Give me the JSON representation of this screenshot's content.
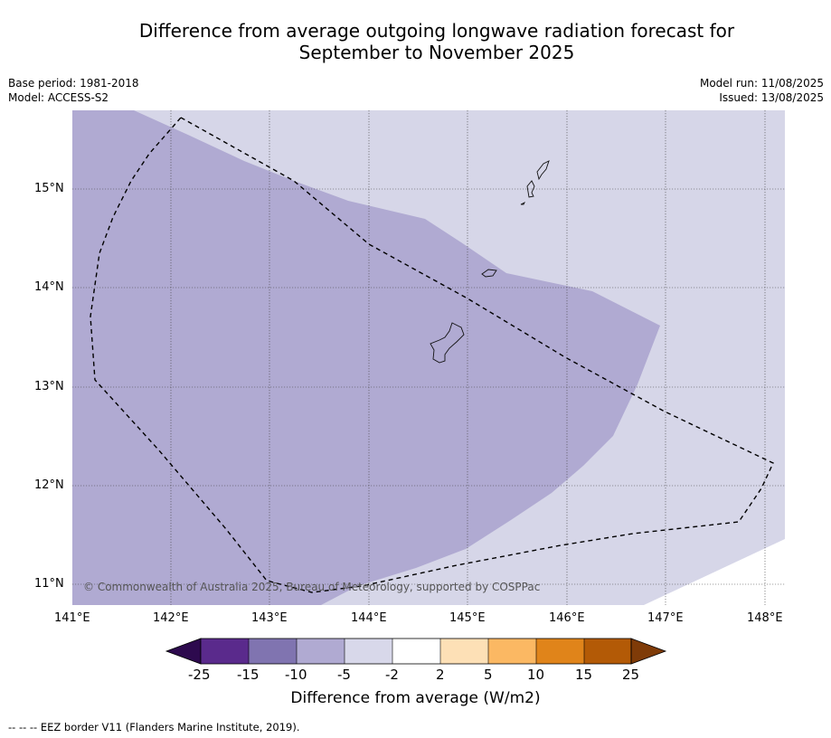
{
  "title_line1": "Difference from average outgoing longwave radiation forecast for",
  "title_line2": "September to November 2025",
  "meta": {
    "base_period": "Base period: 1981-2018",
    "model": "Model: ACCESS-S2",
    "model_run": "Model run: 11/08/2025",
    "issued": "Issued: 13/08/2025"
  },
  "map": {
    "lon_range": [
      141,
      148.2
    ],
    "lat_range": [
      10.8,
      15.8
    ],
    "lat_ticks": [
      "15°N",
      "14°N",
      "13°N",
      "12°N",
      "11°N"
    ],
    "lon_ticks": [
      "141°E",
      "142°E",
      "143°E",
      "144°E",
      "145°E",
      "146°E",
      "147°E",
      "148°E"
    ],
    "copyright": "© Commonwealth of Australia 2025, Bureau of Meteorology, supported by COSPPac",
    "colors": {
      "band_-10_-5": "#b0aad2",
      "band_-5_-2": "#d6d6e8",
      "eez": "#000000"
    }
  },
  "colorbar": {
    "labels": [
      "-25",
      "-15",
      "-10",
      "-5",
      "-2",
      "2",
      "5",
      "10",
      "15",
      "25"
    ],
    "colors": [
      "#2d0a4e",
      "#5a2a8c",
      "#8074b0",
      "#b0aad2",
      "#d8d8ea",
      "#ffffff",
      "#fde0b6",
      "#fbb863",
      "#e0841a",
      "#b35a06",
      "#7f3b08"
    ],
    "title": "Difference from average (W/m2)"
  },
  "footer": "--  --  -- EEZ border V11 (Flanders Marine Institute, 2019)."
}
